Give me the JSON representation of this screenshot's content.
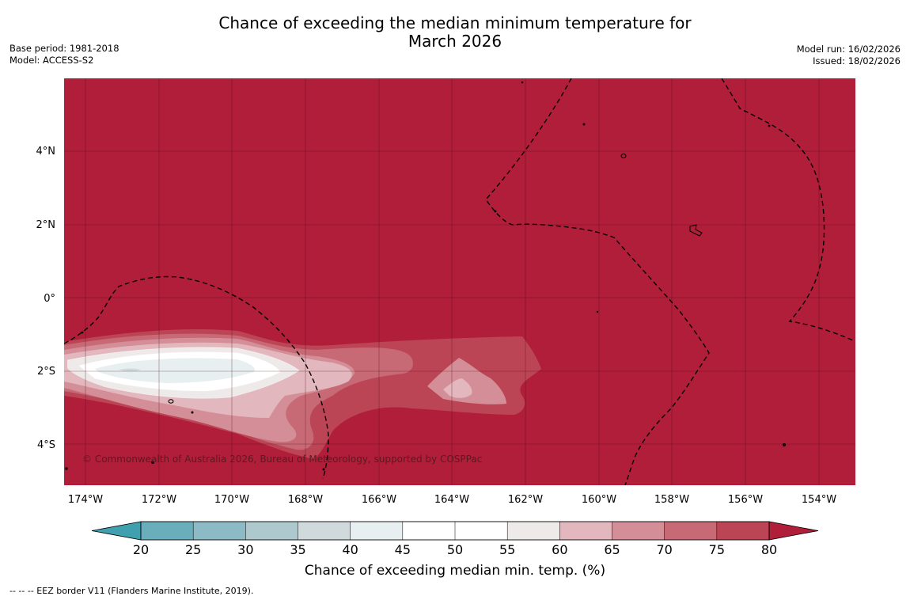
{
  "title": {
    "line1": "Chance of exceeding the median minimum temperature for",
    "line2": "March 2026"
  },
  "meta_left": {
    "base_period": "Base period: 1981-2018",
    "model": "Model: ACCESS-S2"
  },
  "meta_right": {
    "model_run": "Model run: 16/02/2026",
    "issued": "Issued: 18/02/2026"
  },
  "map": {
    "credit": "© Commonwealth of Australia 2026, Bureau of Meteorology, supported by COSPPac",
    "lat_labels": [
      "4°N",
      "2°N",
      "0°",
      "2°S",
      "4°S"
    ],
    "lon_labels": [
      "174°W",
      "172°W",
      "170°W",
      "168°W",
      "166°W",
      "164°W",
      "162°W",
      "160°W",
      "158°W",
      "156°W",
      "154°W"
    ],
    "background_category": "above 80%",
    "background_color": "#b01e3a"
  },
  "colorbar": {
    "title": "Chance of exceeding median min. temp. (%)",
    "tick_labels": [
      "20",
      "25",
      "30",
      "35",
      "40",
      "45",
      "50",
      "55",
      "60",
      "65",
      "70",
      "75",
      "80"
    ],
    "colors": [
      "#40a0b0",
      "#6aaebc",
      "#8cbbc6",
      "#adc9ce",
      "#d0dadc",
      "#e8eff0",
      "#ffffff",
      "#ffffff",
      "#eeeaea",
      "#e2b7bd",
      "#d48e98",
      "#c86a76",
      "#bc4555",
      "#b01e3a"
    ],
    "extend": "both"
  },
  "footnote": "--  --  -- EEZ border V11 (Flanders Marine Institute, 2019)."
}
